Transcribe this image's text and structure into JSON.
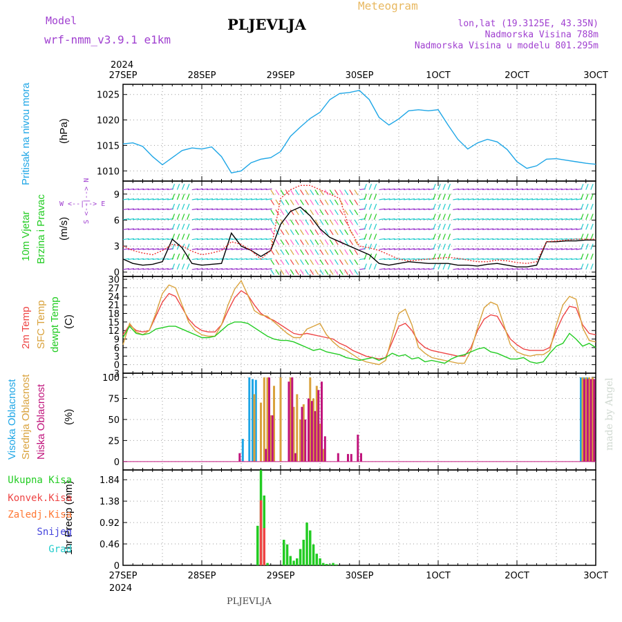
{
  "header": {
    "model_label": "Model",
    "model_name": "wrf-nmm_v3.9.1 e1km",
    "station": "PLJEVLJA",
    "product": "Meteogram",
    "lonlat": "lon,lat (19.3125E, 43.35N)",
    "elevation": "Nadmorska Visina 788m",
    "model_elevation": "Nadmorska Visina u modelu 801.295m",
    "footer_station": "PLJEVLJA",
    "watermark": "made by Angel"
  },
  "time_axis": {
    "year": "2024",
    "ticks": [
      "27SEP",
      "28SEP",
      "29SEP",
      "30SEP",
      "1OCT",
      "2OCT",
      "3OCT"
    ],
    "hours_per_tick": 24,
    "total_hours": 144
  },
  "colors": {
    "pressure": "#1ea6e6",
    "temp2m": "#ee4444",
    "sfc_temp": "#d9a23c",
    "dewpoint": "#22cc22",
    "high_cloud": "#1ea6e6",
    "mid_cloud": "#d9a23c",
    "low_cloud": "#c0147c",
    "total_precip": "#22cc22",
    "conv_precip": "#ee4444",
    "freezing_rain": "#ff7733",
    "snow": "#4444dd",
    "hail": "#22cccc",
    "wind_speed": "#000000",
    "gust": "#ee3333",
    "purple_text": "#a040d0",
    "orange_text": "#e8b860"
  },
  "chart_data": [
    {
      "type": "line",
      "panel": "pressure",
      "ylabel_main": "Pritisak na nivou mora",
      "ylabel_unit": "(hPa)",
      "ylim": [
        1008,
        1027
      ],
      "yticks": [
        1010,
        1015,
        1020,
        1025
      ],
      "grid": true,
      "series": [
        {
          "color_key": "pressure",
          "x": [
            0,
            3,
            6,
            9,
            12,
            15,
            18,
            21,
            24,
            27,
            30,
            33,
            36,
            39,
            42,
            45,
            48,
            51,
            54,
            57,
            60,
            63,
            66,
            69,
            72,
            75,
            78,
            81,
            84,
            87,
            90,
            93,
            96,
            99,
            102,
            105,
            108,
            111,
            114,
            117,
            120,
            123,
            126,
            129,
            132,
            135,
            138,
            141,
            144
          ],
          "values": [
            1015.3,
            1015.5,
            1014.8,
            1012.8,
            1011.2,
            1012.6,
            1014.0,
            1014.5,
            1014.3,
            1014.7,
            1012.8,
            1009.6,
            1010.0,
            1011.6,
            1012.3,
            1012.6,
            1013.8,
            1016.8,
            1018.6,
            1020.3,
            1021.5,
            1024.0,
            1025.2,
            1025.4,
            1025.8,
            1024.0,
            1020.5,
            1019.0,
            1020.2,
            1021.8,
            1022.0,
            1021.8,
            1022.0,
            1019.0,
            1016.2,
            1014.3,
            1015.5,
            1016.2,
            1015.7,
            1014.2,
            1011.8,
            1010.5,
            1011.0,
            1012.3,
            1012.4,
            1012.1,
            1011.8,
            1011.5,
            1011.3
          ]
        }
      ]
    },
    {
      "type": "line",
      "panel": "wind",
      "ylabel_main": "10m Vjetar",
      "ylabel_sub": "Brzina i Pravac",
      "ylabel_unit": "(m/s)",
      "compass": "W <--|--> E",
      "compass_v": "S <--|--> N",
      "ylim": [
        -0.5,
        10.5
      ],
      "yticks": [
        0,
        3,
        6,
        9
      ],
      "grid": true,
      "series": [
        {
          "color_key": "wind_speed",
          "x": [
            0,
            3,
            6,
            9,
            12,
            15,
            18,
            21,
            24,
            27,
            30,
            33,
            36,
            39,
            42,
            45,
            48,
            51,
            54,
            57,
            60,
            63,
            66,
            69,
            72,
            75,
            78,
            81,
            84,
            87,
            90,
            93,
            96,
            99,
            102,
            105,
            108,
            111,
            114,
            117,
            120,
            123,
            126,
            129,
            132,
            135,
            138,
            141,
            144
          ],
          "values": [
            1.5,
            1.0,
            0.8,
            0.9,
            1.2,
            3.8,
            2.8,
            1.0,
            0.8,
            0.9,
            1.0,
            4.5,
            3.0,
            2.5,
            1.8,
            2.5,
            5.5,
            7.0,
            7.5,
            6.5,
            5.0,
            4.0,
            3.5,
            3.0,
            2.5,
            2.0,
            1.0,
            0.8,
            1.0,
            1.2,
            1.1,
            1.0,
            1.0,
            1.0,
            0.8,
            0.8,
            0.7,
            0.9,
            1.0,
            0.8,
            0.6,
            0.6,
            0.8,
            3.5,
            3.5,
            3.6,
            3.6,
            3.7,
            3.7
          ]
        },
        {
          "color_key": "gust",
          "x": [
            0,
            3,
            6,
            9,
            12,
            15,
            18,
            21,
            24,
            27,
            30,
            33,
            36,
            39,
            42,
            45,
            48,
            51,
            54,
            57,
            60,
            63,
            66,
            69,
            72,
            75,
            78,
            81,
            84,
            87,
            90,
            93,
            96,
            99,
            102,
            105,
            108,
            111,
            114,
            117,
            120,
            123,
            126,
            129,
            132,
            135,
            138,
            141,
            144
          ],
          "values": [
            3.0,
            2.5,
            2.2,
            2.0,
            2.5,
            3.2,
            3.0,
            2.4,
            2.0,
            2.2,
            2.5,
            3.5,
            3.2,
            2.5,
            1.5,
            2.5,
            8.5,
            9.5,
            10.0,
            10.0,
            9.5,
            9.0,
            8.5,
            5.0,
            3.0,
            2.8,
            2.5,
            2.0,
            1.5,
            1.3,
            1.4,
            1.5,
            1.6,
            1.7,
            1.6,
            1.4,
            1.2,
            1.2,
            1.4,
            1.3,
            1.1,
            1.0,
            1.2,
            3.5,
            3.6,
            3.7,
            3.8,
            3.8,
            3.8
          ]
        }
      ]
    },
    {
      "type": "line",
      "panel": "temperature",
      "ylabel_main": "2m Temp",
      "ylabel_sub": "SFC Temp",
      "ylabel_sub2": "dewpt Temp",
      "ylabel_unit": "(C)",
      "ylim": [
        -3,
        31
      ],
      "yticks": [
        -3,
        0,
        3,
        6,
        9,
        12,
        15,
        18,
        21,
        24,
        27,
        30
      ],
      "grid": true,
      "series": [
        {
          "color_key": "temp2m",
          "x": [
            0,
            2,
            4,
            6,
            8,
            10,
            12,
            14,
            16,
            18,
            20,
            22,
            24,
            26,
            28,
            30,
            32,
            34,
            36,
            38,
            40,
            42,
            44,
            46,
            48,
            50,
            52,
            54,
            56,
            58,
            60,
            62,
            64,
            66,
            68,
            70,
            72,
            74,
            76,
            78,
            80,
            82,
            84,
            86,
            88,
            90,
            92,
            94,
            96,
            98,
            100,
            102,
            104,
            106,
            108,
            110,
            112,
            114,
            116,
            118,
            120,
            122,
            124,
            126,
            128,
            130,
            132,
            134,
            136,
            138,
            140,
            142,
            144
          ],
          "values": [
            10.5,
            14.0,
            12.0,
            11.5,
            12.0,
            17.0,
            22.0,
            25.0,
            24.0,
            20.0,
            16.0,
            13.5,
            12.0,
            11.5,
            11.5,
            14.0,
            19.0,
            23.5,
            26.0,
            24.5,
            21.0,
            18.0,
            16.5,
            15.5,
            14.0,
            12.5,
            11.0,
            10.5,
            11.0,
            10.5,
            10.0,
            9.5,
            9.0,
            7.5,
            6.5,
            5.0,
            4.0,
            3.0,
            2.5,
            2.0,
            2.5,
            8.0,
            13.5,
            14.5,
            12.0,
            8.0,
            6.0,
            5.0,
            4.5,
            4.0,
            3.5,
            3.0,
            3.0,
            6.0,
            12.0,
            16.0,
            17.5,
            17.0,
            13.0,
            9.0,
            7.0,
            5.5,
            5.0,
            5.0,
            5.0,
            6.0,
            12.0,
            17.0,
            20.5,
            20.0,
            14.0,
            11.0,
            10.5
          ]
        },
        {
          "color_key": "sfc_temp",
          "x": [
            0,
            2,
            4,
            6,
            8,
            10,
            12,
            14,
            16,
            18,
            20,
            22,
            24,
            26,
            28,
            30,
            32,
            34,
            36,
            38,
            40,
            42,
            44,
            46,
            48,
            50,
            52,
            54,
            56,
            58,
            60,
            62,
            64,
            66,
            68,
            70,
            72,
            74,
            76,
            78,
            80,
            82,
            84,
            86,
            88,
            90,
            92,
            94,
            96,
            98,
            100,
            102,
            104,
            106,
            108,
            110,
            112,
            114,
            116,
            118,
            120,
            122,
            124,
            126,
            128,
            130,
            132,
            134,
            136,
            138,
            140,
            142,
            144
          ],
          "values": [
            7.0,
            14.5,
            11.5,
            10.5,
            12.0,
            18.0,
            25.0,
            28.0,
            27.0,
            21.0,
            15.0,
            12.0,
            10.5,
            10.0,
            10.0,
            14.0,
            21.0,
            26.5,
            29.5,
            24.5,
            19.0,
            17.5,
            17.0,
            15.0,
            13.0,
            11.0,
            9.5,
            9.5,
            12.5,
            13.5,
            14.5,
            10.5,
            8.0,
            6.0,
            5.0,
            3.5,
            2.0,
            1.0,
            0.5,
            0.0,
            1.5,
            10.0,
            18.0,
            19.5,
            14.0,
            6.0,
            4.0,
            2.5,
            2.0,
            1.5,
            1.0,
            0.5,
            0.5,
            5.0,
            13.0,
            20.0,
            22.0,
            21.0,
            14.0,
            7.0,
            4.5,
            3.5,
            3.0,
            3.5,
            3.5,
            5.0,
            14.0,
            21.0,
            24.0,
            23.0,
            13.0,
            8.5,
            8.0
          ]
        },
        {
          "color_key": "dewpoint",
          "x": [
            0,
            2,
            4,
            6,
            8,
            10,
            12,
            14,
            16,
            18,
            20,
            22,
            24,
            26,
            28,
            30,
            32,
            34,
            36,
            38,
            40,
            42,
            44,
            46,
            48,
            50,
            52,
            54,
            56,
            58,
            60,
            62,
            64,
            66,
            68,
            70,
            72,
            74,
            76,
            78,
            80,
            82,
            84,
            86,
            88,
            90,
            92,
            94,
            96,
            98,
            100,
            102,
            104,
            106,
            108,
            110,
            112,
            114,
            116,
            118,
            120,
            122,
            124,
            126,
            128,
            130,
            132,
            134,
            136,
            138,
            140,
            142,
            144
          ],
          "values": [
            9.5,
            13.5,
            11.0,
            10.5,
            11.0,
            12.5,
            13.0,
            13.5,
            13.5,
            12.5,
            11.5,
            10.5,
            9.5,
            9.5,
            10.0,
            12.0,
            14.0,
            15.0,
            15.0,
            14.5,
            13.0,
            11.5,
            10.0,
            9.0,
            8.5,
            8.5,
            8.0,
            7.0,
            6.0,
            5.0,
            5.5,
            4.5,
            4.0,
            3.5,
            2.5,
            2.0,
            1.5,
            2.0,
            2.5,
            1.5,
            2.5,
            4.0,
            3.0,
            3.5,
            2.0,
            2.5,
            1.0,
            1.5,
            1.0,
            0.5,
            2.0,
            3.0,
            3.5,
            4.5,
            5.5,
            6.0,
            4.5,
            4.0,
            3.0,
            2.0,
            2.0,
            2.5,
            1.0,
            0.5,
            1.0,
            4.0,
            6.5,
            7.5,
            11.0,
            9.0,
            6.5,
            7.5,
            6.0
          ]
        }
      ]
    },
    {
      "type": "bar",
      "panel": "cloud",
      "ylabel_main": "Visoka Oblacnost",
      "ylabel_sub": "Srednja Oblacnost",
      "ylabel_sub2": "Niska Oblacnost",
      "ylabel_unit": "(%)",
      "ylim": [
        -10,
        105
      ],
      "yticks": [
        0,
        25,
        50,
        75,
        100
      ],
      "grid": true,
      "series": [
        {
          "color_key": "high_cloud",
          "x": [
            37,
            39,
            40,
            41,
            140,
            141,
            142,
            143
          ],
          "values": [
            27,
            100,
            98,
            97,
            100,
            100,
            100,
            98
          ]
        },
        {
          "color_key": "mid_cloud",
          "x": [
            40,
            42,
            43,
            44,
            45,
            46,
            48,
            51,
            52,
            53,
            54,
            55,
            57,
            58,
            59,
            60,
            61,
            140,
            141,
            142,
            143
          ],
          "values": [
            80,
            70,
            100,
            100,
            55,
            90,
            100,
            100,
            65,
            80,
            50,
            68,
            100,
            75,
            90,
            45,
            15,
            100,
            100,
            100,
            100
          ]
        },
        {
          "color_key": "low_cloud",
          "x": [
            35,
            43,
            44,
            45,
            50,
            51,
            52,
            54,
            55,
            56,
            57,
            58,
            59,
            60,
            61,
            65,
            68,
            69,
            71,
            72,
            140,
            141,
            142,
            143
          ],
          "values": [
            10,
            15,
            100,
            55,
            95,
            100,
            10,
            65,
            50,
            75,
            72,
            60,
            85,
            95,
            30,
            10,
            9,
            9,
            32,
            10,
            98,
            98,
            98,
            98
          ]
        }
      ]
    },
    {
      "type": "bar",
      "panel": "precip",
      "legend": [
        "Ukupna Kisa",
        "Konvek.Kisa",
        "Zaledj.Kisa",
        "Snijeg",
        "Grad"
      ],
      "ylabel_unit": "1hr Precip (mm)",
      "ylim": [
        0,
        2.05
      ],
      "yticks": [
        0,
        0.46,
        0.92,
        1.38,
        1.84
      ],
      "grid": true,
      "series": [
        {
          "color_key": "total_precip",
          "x": [
            41,
            42,
            43,
            44,
            49,
            50,
            51,
            52,
            53,
            54,
            55,
            56,
            57,
            58,
            59,
            60,
            61,
            62,
            63,
            64,
            65
          ],
          "values": [
            0.85,
            2.05,
            1.5,
            0.05,
            0.55,
            0.45,
            0.2,
            0.1,
            0.15,
            0.35,
            0.55,
            0.92,
            0.75,
            0.45,
            0.25,
            0.15,
            0.05,
            0.03,
            0.02,
            0.05,
            0.02
          ]
        },
        {
          "color_key": "conv_precip",
          "x": [
            42,
            43
          ],
          "values": [
            1.4,
            0.8
          ]
        }
      ]
    }
  ]
}
